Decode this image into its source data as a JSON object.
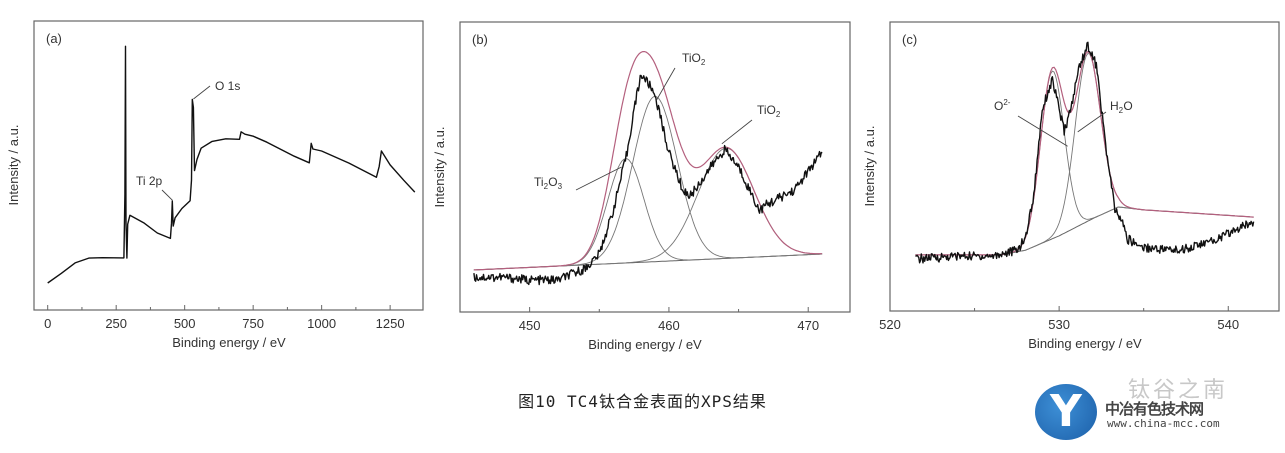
{
  "figure": {
    "caption": "图10   TC4钛合金表面的XPS结果",
    "watermark": "钛谷之南",
    "logo": {
      "letter": "Y",
      "name": "中冶有色技术网",
      "url": "www.china-mcc.com",
      "color": "#2a73c0"
    }
  },
  "chart_data": [
    {
      "type": "line",
      "panel": "(a)",
      "xlabel": "Binding energy / eV",
      "ylabel": "Intensity / a.u.",
      "xlim": [
        -50,
        1370
      ],
      "ylim": [
        0,
        100
      ],
      "xticks": [
        0,
        250,
        500,
        750,
        1000,
        1250
      ],
      "grid": false,
      "series": [
        {
          "style": "raw",
          "color": "#111111",
          "x": [
            0,
            50,
            100,
            150,
            200,
            278,
            282,
            284,
            286,
            289,
            292,
            300,
            350,
            400,
            448,
            452,
            455,
            458,
            465,
            490,
            520,
            525,
            528,
            532,
            536,
            545,
            560,
            600,
            650,
            700,
            706,
            720,
            750,
            800,
            900,
            955,
            962,
            968,
            1000,
            1100,
            1200,
            1210,
            1218,
            1250,
            1300,
            1340
          ],
          "y": [
            9,
            13,
            16,
            18,
            18,
            18,
            40,
            91,
            30,
            18,
            30,
            33,
            30,
            27,
            25,
            30,
            38,
            29,
            32,
            35,
            38,
            45,
            73,
            70,
            48,
            52,
            56,
            58,
            59,
            59,
            62,
            61,
            60,
            58,
            53,
            51,
            58,
            56,
            55,
            51,
            46,
            50,
            55,
            50,
            45,
            41
          ]
        }
      ],
      "annotations": [
        {
          "text": "Ti 2p",
          "target": [
            455,
            38
          ]
        },
        {
          "text": "O 1s",
          "target": [
            532,
            73
          ]
        }
      ]
    },
    {
      "type": "line",
      "panel": "(b)",
      "xlabel": "Binding energy / eV",
      "ylabel": "Intensity / a.u.",
      "xlim": [
        445,
        473
      ],
      "ylim": [
        0,
        100
      ],
      "xticks": [
        450,
        460,
        470
      ],
      "grid": false,
      "baseline": {
        "x": [
          446,
          471
        ],
        "y": [
          14.5,
          20
        ]
      },
      "components": [
        {
          "name": "Ti2O3",
          "center": 456.9,
          "amplitude": 36,
          "sigma": 1.3
        },
        {
          "name": "TiO2",
          "center": 459.0,
          "amplitude": 57,
          "sigma": 1.6
        },
        {
          "name": "TiO2",
          "center": 464.1,
          "amplitude": 38,
          "sigma": 2.0
        }
      ],
      "series": [
        {
          "style": "raw",
          "color": "#111111",
          "x": [
            446,
            448,
            450,
            452,
            454,
            455,
            456,
            457,
            457.5,
            458,
            458.5,
            459,
            460,
            461,
            461.5,
            462,
            463,
            464,
            465,
            466,
            466.5,
            467,
            469,
            471
          ],
          "y": [
            12,
            12,
            11,
            11,
            15,
            20,
            35,
            55,
            70,
            82,
            79,
            75,
            55,
            42,
            40,
            43,
            50,
            56,
            50,
            40,
            35,
            37,
            42,
            55
          ]
        },
        {
          "style": "fit",
          "color": "#b4607e"
        },
        {
          "style": "component",
          "color": "#777777"
        }
      ],
      "annotations": [
        {
          "text": "Ti2O3",
          "target": [
            456.6,
            50
          ]
        },
        {
          "text": "TiO2",
          "target": [
            459.1,
            73
          ]
        },
        {
          "text": "TiO2",
          "target": [
            463.8,
            58
          ]
        }
      ]
    },
    {
      "type": "line",
      "panel": "(c)",
      "xlabel": "Binding energy / eV",
      "ylabel": "Intensity / a.u.",
      "xlim": [
        520,
        543
      ],
      "ylim": [
        0,
        100
      ],
      "xticks": [
        520,
        530,
        540
      ],
      "grid": false,
      "baseline": {
        "x": [
          521.5,
          526.5,
          528,
          530,
          532,
          533.5,
          535,
          541.5
        ],
        "y": [
          19.4,
          19.4,
          21,
          26,
          32,
          36,
          35,
          32.5
        ]
      },
      "components": [
        {
          "name": "O2-",
          "center": 529.6,
          "amplitude": 58,
          "sigma": 0.7
        },
        {
          "name": "H2O",
          "center": 531.7,
          "amplitude": 58,
          "sigma": 0.75
        }
      ],
      "series": [
        {
          "style": "raw",
          "color": "#111111",
          "x": [
            521.5,
            524,
            526,
            527.5,
            528,
            528.5,
            529,
            529.6,
            530,
            530.3,
            530.7,
            531.2,
            531.7,
            532.2,
            532.8,
            533.3,
            533.8,
            534,
            535,
            537,
            539,
            541.5
          ],
          "y": [
            18,
            19,
            19,
            21,
            25,
            40,
            70,
            80,
            70,
            62,
            70,
            85,
            92,
            85,
            55,
            35,
            30,
            25,
            22,
            21,
            24,
            31
          ]
        },
        {
          "style": "fit",
          "color": "#b4607e"
        },
        {
          "style": "component",
          "color": "#777777"
        }
      ],
      "annotations": [
        {
          "text": "O2-",
          "target": [
            530.5,
            57
          ]
        },
        {
          "text": "H2O",
          "target": [
            531.1,
            62
          ]
        }
      ]
    }
  ]
}
